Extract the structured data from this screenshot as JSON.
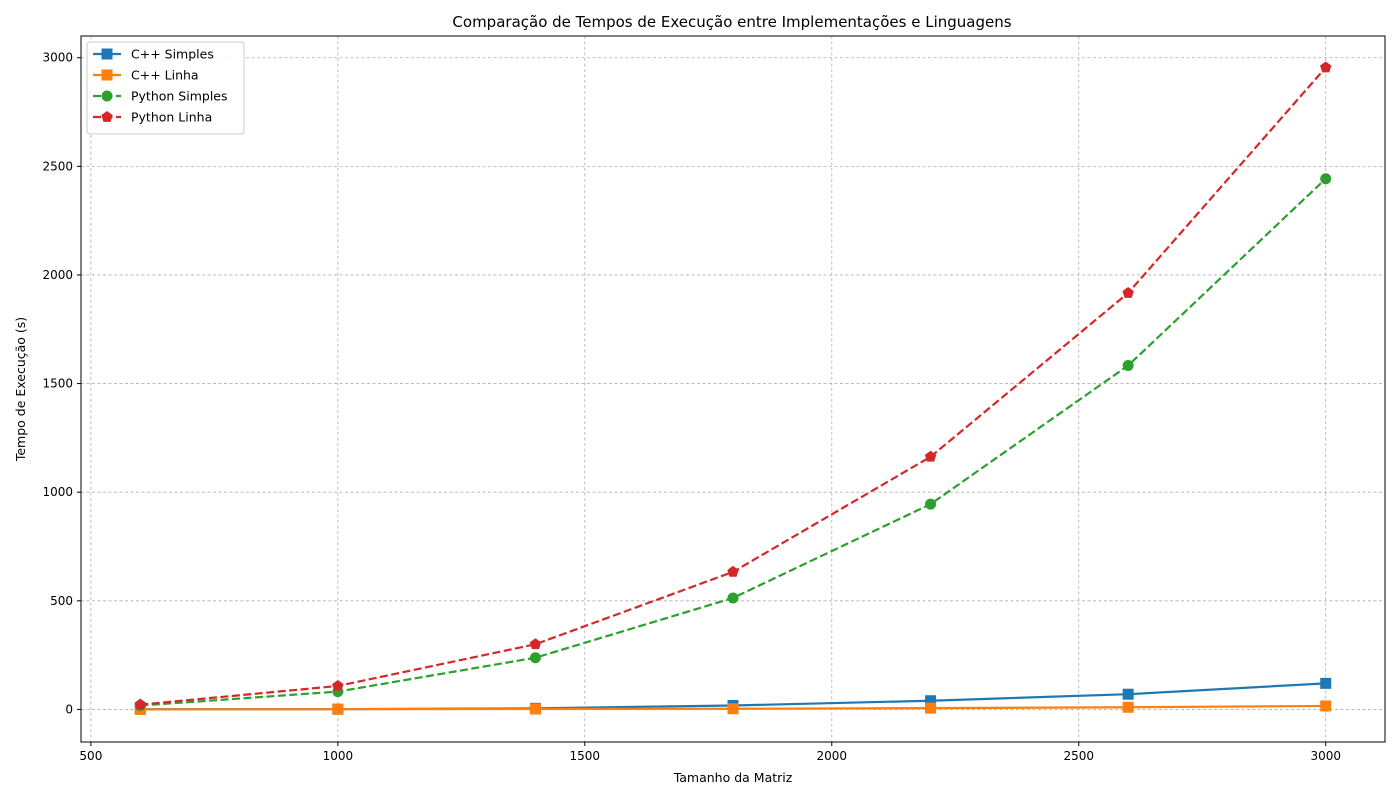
{
  "chart_data": {
    "type": "line",
    "title": "Comparação de Tempos de Execução entre Implementações e Linguagens",
    "xlabel": "Tamanho da Matriz",
    "ylabel": "Tempo de Execução (s)",
    "x": [
      600,
      1000,
      1400,
      1800,
      2200,
      2600,
      3000
    ],
    "xlim": [
      480,
      3120
    ],
    "ylim": [
      -150,
      3100
    ],
    "xticks": [
      500,
      1000,
      1500,
      2000,
      2500,
      3000
    ],
    "yticks": [
      0,
      500,
      1000,
      1500,
      2000,
      2500,
      3000
    ],
    "grid": true,
    "legend_position": "upper-left",
    "series": [
      {
        "name": "C++ Simples",
        "color": "#1f77b4",
        "marker": "square",
        "dash": "solid",
        "values": [
          1,
          1,
          5,
          18,
          40,
          70,
          120
        ]
      },
      {
        "name": "C++ Linha",
        "color": "#ff7f0e",
        "marker": "square",
        "dash": "solid",
        "values": [
          0,
          1,
          2,
          3,
          6,
          10,
          16
        ]
      },
      {
        "name": "Python Simples",
        "color": "#2ca02c",
        "marker": "circle",
        "dash": "dashed",
        "values": [
          18,
          82,
          238,
          513,
          945,
          1583,
          2443
        ]
      },
      {
        "name": "Python Linha",
        "color": "#d62728",
        "marker": "pentagon",
        "dash": "dashed",
        "values": [
          22,
          108,
          300,
          633,
          1163,
          1917,
          2955
        ]
      }
    ]
  }
}
